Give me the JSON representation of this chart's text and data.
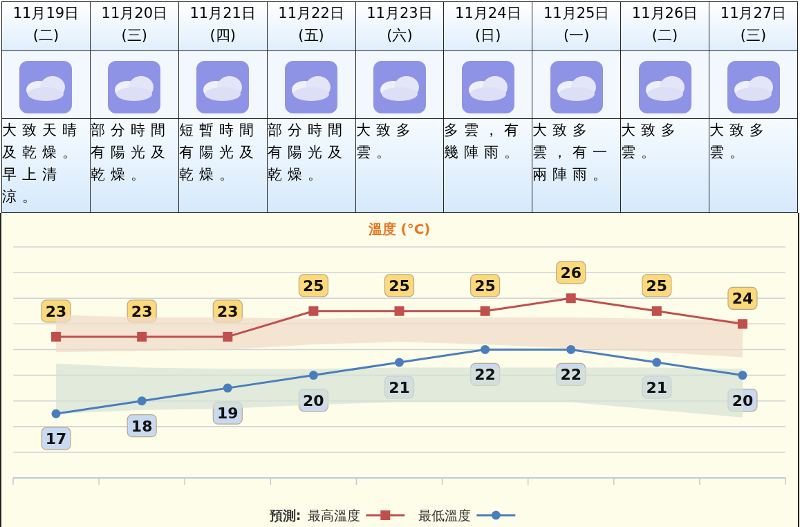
{
  "chart_data": {
    "type": "line",
    "title": "溫度 (°C)",
    "legend_title": "預測:",
    "categories": [
      "11月19日 (二)",
      "11月20日 (三)",
      "11月21日 (四)",
      "11月22日 (五)",
      "11月23日 (六)",
      "11月24日 (日)",
      "11月25日 (一)",
      "11月26日 (二)",
      "11月27日 (三)"
    ],
    "annotations": [
      "大致天晴及乾燥。早上清涼。",
      "部分時間有陽光及乾燥。",
      "短暫時間有陽光及乾燥。",
      "部分時間有陽光及乾燥。",
      "大致多雲。",
      "多雲，有幾陣雨。",
      "大致多雲，有一兩陣雨。",
      "大致多雲。",
      "大致多雲。"
    ],
    "series": [
      {
        "name": "最高溫度",
        "color": "#c0504d",
        "marker": "square",
        "values": [
          23,
          23,
          23,
          25,
          25,
          25,
          26,
          25,
          24
        ],
        "lower": [
          21.8,
          21.9,
          22.0,
          22.4,
          22.6,
          22.4,
          22.1,
          21.8,
          21.4
        ],
        "upper": [
          24.7,
          24.5,
          24.5,
          24.4,
          24.5,
          24.5,
          24.5,
          24.4,
          24.3
        ]
      },
      {
        "name": "最低溫度",
        "color": "#4a7ebb",
        "marker": "circle",
        "values": [
          17,
          18,
          19,
          20,
          21,
          22,
          22,
          21,
          20
        ],
        "lower": [
          17.0,
          17.3,
          17.4,
          17.7,
          17.9,
          17.9,
          17.9,
          17.3,
          16.7
        ],
        "upper": [
          20.9,
          20.6,
          20.5,
          20.5,
          20.6,
          20.6,
          20.6,
          20.6,
          20.5
        ]
      }
    ],
    "ylim": [
      12,
      30
    ],
    "yticks": [
      {
        "value": 12,
        "label": null
      },
      {
        "value": 14,
        "label": null
      },
      {
        "value": 16,
        "label": null
      },
      {
        "value": 18,
        "label": null
      },
      {
        "value": 20,
        "label": null
      },
      {
        "value": 22,
        "label": null
      },
      {
        "value": 24,
        "label": null
      },
      {
        "value": 26,
        "label": null
      },
      {
        "value": 28,
        "label": null
      },
      {
        "value": 30,
        "label": null
      }
    ],
    "grid": "y",
    "legend": "bottom",
    "data_labels": true,
    "line_style": "solid"
  }
}
